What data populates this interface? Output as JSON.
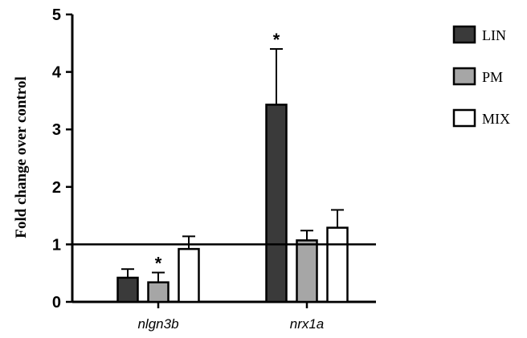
{
  "chart_data": {
    "type": "bar",
    "title": "",
    "xlabel": "",
    "ylabel": "Fold change over control",
    "ylim": [
      0,
      5
    ],
    "yticks": [
      0,
      1,
      2,
      3,
      4,
      5
    ],
    "categories": [
      "nlgn3b",
      "nrx1a"
    ],
    "series": [
      {
        "name": "LIN",
        "color": "#3a3a3a",
        "values": [
          0.42,
          3.43
        ],
        "errors": [
          0.15,
          0.97
        ],
        "significant": [
          false,
          true
        ]
      },
      {
        "name": "PM",
        "color": "#a6a6a6",
        "values": [
          0.34,
          1.07
        ],
        "errors": [
          0.17,
          0.17
        ],
        "significant": [
          true,
          false
        ]
      },
      {
        "name": "MIX",
        "color": "#ffffff",
        "values": [
          0.92,
          1.29
        ],
        "errors": [
          0.22,
          0.31
        ],
        "significant": [
          false,
          false
        ]
      }
    ],
    "reference_line": 1,
    "significance_marker": "*",
    "legend_position": "top-right",
    "grid": false
  }
}
